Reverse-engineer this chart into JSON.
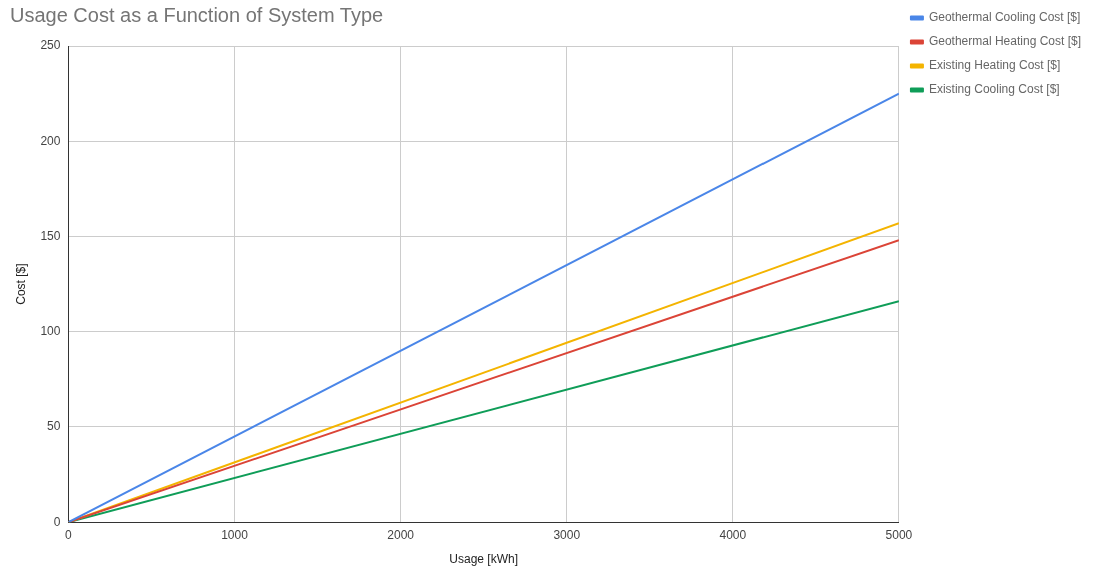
{
  "chart_data": {
    "type": "line",
    "title": "Usage Cost as a Function of System Type",
    "xlabel": "Usage [kWh]",
    "ylabel": "Cost [$]",
    "x": [
      0,
      5000
    ],
    "series": [
      {
        "name": "Geothermal Cooling Cost [$]",
        "color": "#4a86e8",
        "values": [
          0,
          225
        ]
      },
      {
        "name": "Geothermal Heating Cost [$]",
        "color": "#db4437",
        "values": [
          0,
          148
        ]
      },
      {
        "name": "Existing Heating Cost [$]",
        "color": "#f4b400",
        "values": [
          0,
          157
        ]
      },
      {
        "name": "Existing Cooling Cost [$]",
        "color": "#0f9d58",
        "values": [
          0,
          116
        ]
      }
    ],
    "xlim": [
      0,
      5000
    ],
    "xticks": [
      0,
      1000,
      2000,
      3000,
      4000,
      5000
    ],
    "ylim": [
      0,
      250
    ],
    "yticks": [
      0,
      50,
      100,
      150,
      200,
      250
    ],
    "grid": true,
    "legend": "top right",
    "marker": "none",
    "line_style": "solid"
  }
}
